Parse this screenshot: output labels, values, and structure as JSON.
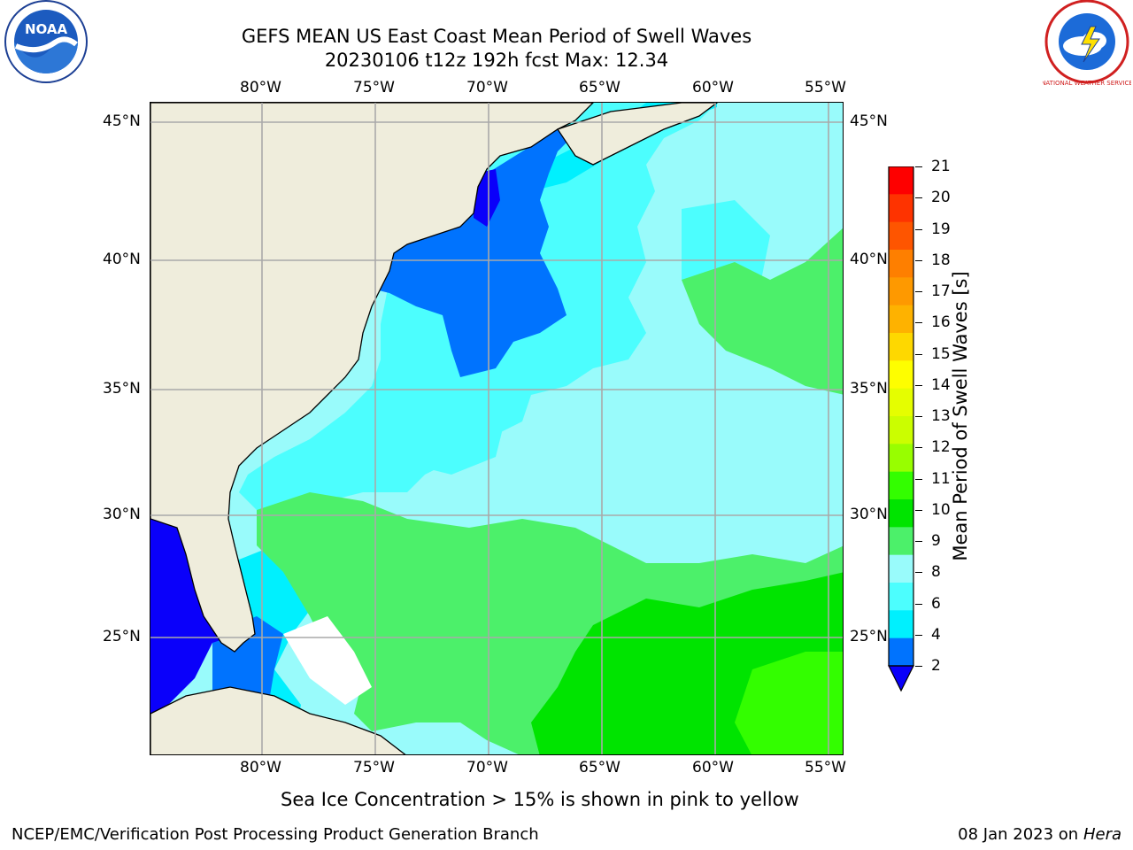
{
  "header": {
    "title_line1": "GEFS MEAN US East Coast Mean Period of Swell Waves",
    "title_line2": "20230106 t12z 192h fcst   Max: 12.34"
  },
  "logos": {
    "left": {
      "icon": "noaa-logo-icon",
      "text": "NOAA"
    },
    "right": {
      "icon": "national-weather-service-logo-icon",
      "text": "NATIONAL WEATHER SERVICE"
    }
  },
  "map": {
    "lon_labels": [
      "80°W",
      "75°W",
      "70°W",
      "65°W",
      "60°W",
      "55°W"
    ],
    "lat_labels": [
      "45°N",
      "40°N",
      "35°N",
      "30°N",
      "25°N"
    ],
    "colors": {
      "land": "#efeddc",
      "ocean_base": "#99fbfb",
      "gridline": "#a9a9a9",
      "coast": "#000000"
    }
  },
  "colorbar": {
    "label": "Mean Period of Swell Waves [s]",
    "ticks": [
      "21",
      "20",
      "19",
      "18",
      "17",
      "16",
      "15",
      "14",
      "13",
      "12",
      "11",
      "10",
      "9",
      "8",
      "6",
      "4",
      "2"
    ],
    "colors_top_to_bottom": [
      "#fe0000",
      "#fe3300",
      "#fe5500",
      "#fe7f00",
      "#fe9900",
      "#feb200",
      "#fed800",
      "#fefe00",
      "#e5fe00",
      "#cbfe00",
      "#98fe00",
      "#33fe00",
      "#00e400",
      "#4cf06a",
      "#99fbfb",
      "#4cfefe",
      "#00f0fe",
      "#0073fe"
    ],
    "extend_color": "#0a00fa"
  },
  "footer": {
    "note": "Sea Ice Concentration > 15% is shown in pink to yellow",
    "credit": "NCEP/EMC/Verification Post Processing Product Generation Branch",
    "date": "08 Jan 2023 on ",
    "machine": "Hera"
  }
}
